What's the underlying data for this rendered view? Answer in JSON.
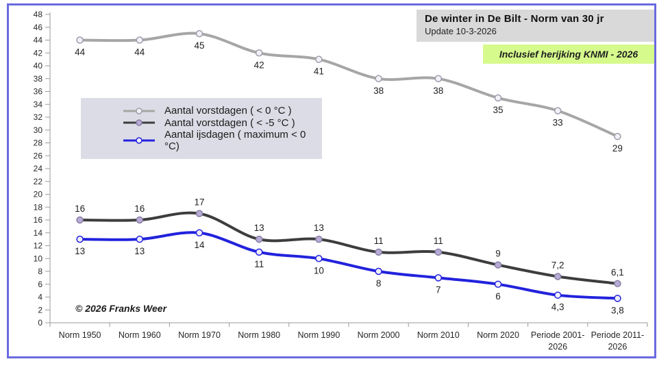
{
  "frame": {
    "border_color": "#6a6ae0"
  },
  "header": {
    "title": "De winter in De Bilt - Norm  van 30 jr",
    "update": "Update 10-3-2026",
    "banner": "Inclusief herijking KNMI - 2026",
    "title_bg": "#d9d9d9",
    "banner_bg": "#d6fa8c"
  },
  "copyright": "© 2026 Franks Weer",
  "legend": {
    "bg": "#dcdce6",
    "items": [
      {
        "label": "Aantal vorstdagen  ( < 0 °C )",
        "color": "#a6a6a6",
        "marker_fill": "#f2f1f8",
        "marker_stroke": "#9d9dac"
      },
      {
        "label": "Aantal vorstdagen  ( < -5 °C )",
        "color": "#3d3d3d",
        "marker_fill": "#b8abd6",
        "marker_stroke": "#877fa5"
      },
      {
        "label": "Aantal ijsdagen ( maximum < 0 °C)",
        "color": "#2222dd",
        "marker_fill": "#f0eefa",
        "marker_stroke": "#2222dd"
      }
    ]
  },
  "chart_data": {
    "type": "line",
    "title": "De winter in De Bilt - Norm van 30 jr",
    "xlabel": "",
    "ylabel": "",
    "ylim": [
      0,
      48
    ],
    "ytick_step": 2,
    "grid": false,
    "legend_position": "inside-upper-left",
    "categories": [
      "Norm 1950",
      "Norm 1960",
      "Norm 1970",
      "Norm 1980",
      "Norm 1990",
      "Norm 2000",
      "Norm 2010",
      "Norm 2020",
      "Periode 2001-2026",
      "Periode 2011-2026"
    ],
    "series": [
      {
        "name": "Aantal vorstdagen ( < 0 °C )",
        "values": [
          44,
          44,
          45,
          42,
          41,
          38,
          38,
          35,
          33,
          29
        ],
        "labels": [
          "44",
          "44",
          "45",
          "42",
          "41",
          "38",
          "38",
          "35",
          "33",
          "29"
        ],
        "color": "#a6a6a6",
        "marker_fill": "#f2f1f8",
        "marker_stroke": "#9d9dac",
        "label_pos": "below"
      },
      {
        "name": "Aantal vorstdagen ( < -5 °C )",
        "values": [
          16,
          16,
          17,
          13,
          13,
          11,
          11,
          9,
          7.2,
          6.1
        ],
        "labels": [
          "16",
          "16",
          "17",
          "13",
          "13",
          "11",
          "11",
          "9",
          "7,2",
          "6,1"
        ],
        "color": "#3d3d3d",
        "marker_fill": "#b8abd6",
        "marker_stroke": "#877fa5",
        "label_pos": "above"
      },
      {
        "name": "Aantal ijsdagen ( maximum < 0 °C)",
        "values": [
          13,
          13,
          14,
          11,
          10,
          8,
          7,
          6,
          4.3,
          3.8
        ],
        "labels": [
          "13",
          "13",
          "14",
          "11",
          "10",
          "8",
          "7",
          "6",
          "4,3",
          "3,8"
        ],
        "color": "#2222dd",
        "marker_fill": "#f0eefa",
        "marker_stroke": "#2222dd",
        "label_pos": "below"
      }
    ]
  }
}
